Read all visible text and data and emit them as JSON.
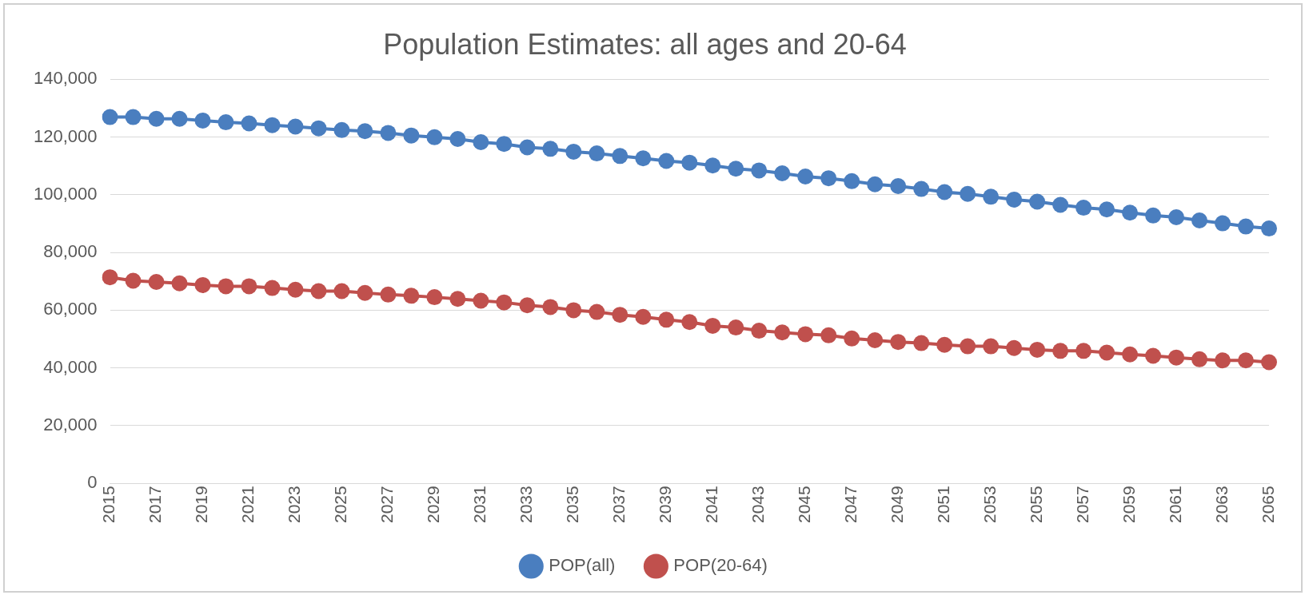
{
  "chart_data": {
    "type": "line",
    "title": "Population Estimates: all ages and 20-64",
    "categories": [
      "2015",
      null,
      "2017",
      null,
      "2019",
      null,
      "2021",
      null,
      "2023",
      null,
      "2025",
      null,
      "2027",
      null,
      "2029",
      null,
      "2031",
      null,
      "2033",
      null,
      "2035",
      null,
      "2037",
      null,
      "2039",
      null,
      "2041",
      null,
      "2043",
      null,
      "2045",
      null,
      "2047",
      null,
      "2049",
      null,
      "2051",
      null,
      "2053",
      null,
      "2055",
      null,
      "2057",
      null,
      "2059",
      null,
      "2061",
      null,
      "2063",
      null,
      "2065"
    ],
    "series": [
      {
        "name": "POP(all)",
        "color": "#4a7ebf",
        "values": [
          126900,
          126900,
          126300,
          126300,
          125700,
          125100,
          124700,
          124100,
          123600,
          123000,
          122400,
          122000,
          121400,
          120500,
          119900,
          119300,
          118200,
          117600,
          116400,
          115900,
          114900,
          114300,
          113400,
          112600,
          111700,
          111100,
          110100,
          109000,
          108400,
          107400,
          106300,
          105700,
          104700,
          103600,
          103000,
          102000,
          100900,
          100300,
          99300,
          98300,
          97600,
          96500,
          95500,
          94900,
          93800,
          92800,
          92200,
          91100,
          90100,
          89000,
          88300
        ]
      },
      {
        "name": "POP(20-64)",
        "color": "#c0504d",
        "values": [
          71400,
          70200,
          69800,
          69300,
          68700,
          68300,
          68300,
          67700,
          67100,
          66600,
          66600,
          66000,
          65400,
          65000,
          64500,
          63900,
          63300,
          62700,
          61700,
          61100,
          60000,
          59400,
          58400,
          57700,
          56700,
          55900,
          54600,
          54000,
          52900,
          52300,
          51700,
          51300,
          50200,
          49600,
          49000,
          48600,
          48000,
          47500,
          47500,
          46900,
          46300,
          45900,
          45900,
          45300,
          44700,
          44200,
          43600,
          43000,
          42600,
          42600,
          42000
        ]
      }
    ],
    "ylim": [
      0,
      140000
    ],
    "yticks": [
      0,
      {
        "value": 20000,
        "label": "20,000"
      },
      {
        "value": 40000,
        "label": "40,000"
      },
      {
        "value": 60000,
        "label": "60,000"
      },
      {
        "value": 80000,
        "label": "80,000"
      },
      {
        "value": 100000,
        "label": "100,000"
      },
      {
        "value": 120000,
        "label": "120,000"
      },
      {
        "value": 140000,
        "label": "140,000"
      }
    ],
    "grid": "y",
    "legend": "bottom",
    "marker": "circle",
    "line_style": "solid"
  }
}
